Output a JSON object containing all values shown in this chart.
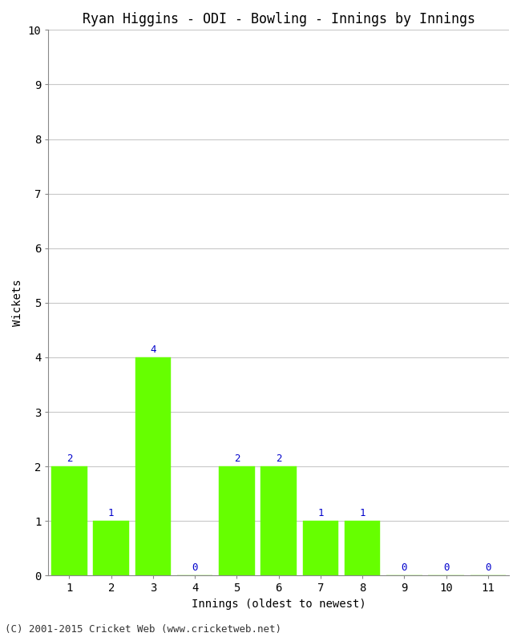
{
  "title": "Ryan Higgins - ODI - Bowling - Innings by Innings",
  "xlabel": "Innings (oldest to newest)",
  "ylabel": "Wickets",
  "categories": [
    "1",
    "2",
    "3",
    "4",
    "5",
    "6",
    "7",
    "8",
    "9",
    "10",
    "11"
  ],
  "values": [
    2,
    1,
    4,
    0,
    2,
    2,
    1,
    1,
    0,
    0,
    0
  ],
  "bar_color": "#66ff00",
  "bar_edge_color": "#66ff00",
  "label_color": "#0000cc",
  "ylim": [
    0,
    10
  ],
  "yticks": [
    0,
    1,
    2,
    3,
    4,
    5,
    6,
    7,
    8,
    9,
    10
  ],
  "background_color": "#ffffff",
  "grid_color": "#c8c8c8",
  "title_fontsize": 12,
  "axis_label_fontsize": 10,
  "tick_fontsize": 10,
  "bar_label_fontsize": 9,
  "footer": "(C) 2001-2015 Cricket Web (www.cricketweb.net)",
  "footer_fontsize": 9
}
